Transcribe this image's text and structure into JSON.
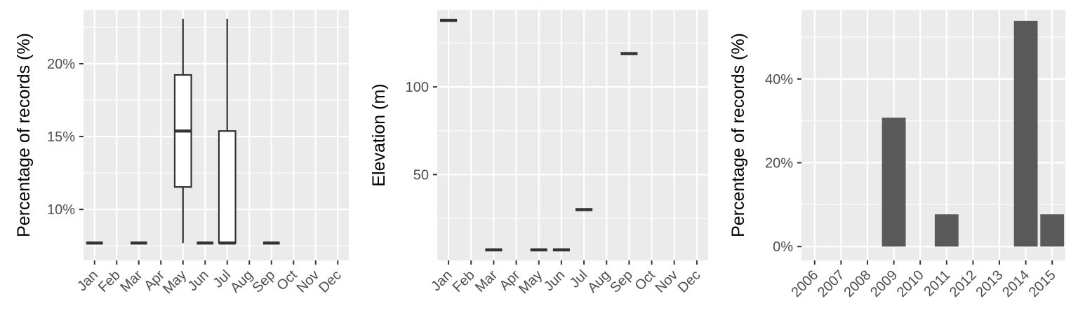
{
  "chart_data": [
    {
      "type": "boxplot",
      "title": "",
      "xlabel": "",
      "ylabel": "Percentage of records (%)",
      "categories": [
        "Jan",
        "Feb",
        "Mar",
        "Apr",
        "May",
        "Jun",
        "Jul",
        "Aug",
        "Sep",
        "Oct",
        "Nov",
        "Dec"
      ],
      "ylim": [
        6.5,
        23.7
      ],
      "yticks": [
        10,
        15,
        20
      ],
      "ytick_labels": [
        "10%",
        "15%",
        "20%"
      ],
      "boxes": [
        {
          "category": "Jan",
          "min": 7.69,
          "q1": 7.69,
          "median": 7.69,
          "q3": 7.69,
          "max": 7.69
        },
        {
          "category": "Mar",
          "min": 7.69,
          "q1": 7.69,
          "median": 7.69,
          "q3": 7.69,
          "max": 7.69
        },
        {
          "category": "May",
          "min": 7.69,
          "q1": 11.54,
          "median": 15.38,
          "q3": 19.23,
          "max": 23.08
        },
        {
          "category": "Jun",
          "min": 7.69,
          "q1": 7.69,
          "median": 7.69,
          "q3": 7.69,
          "max": 7.69
        },
        {
          "category": "Jul",
          "min": 7.69,
          "q1": 7.69,
          "median": 7.69,
          "q3": 15.38,
          "max": 23.08
        },
        {
          "category": "Sep",
          "min": 7.69,
          "q1": 7.69,
          "median": 7.69,
          "q3": 7.69,
          "max": 7.69
        }
      ],
      "grid": true,
      "legend": "none"
    },
    {
      "type": "boxplot",
      "title": "",
      "xlabel": "",
      "ylabel": "Elevation (m)",
      "categories": [
        "Jan",
        "Feb",
        "Mar",
        "Apr",
        "May",
        "Jun",
        "Jul",
        "Aug",
        "Sep",
        "Oct",
        "Nov",
        "Dec"
      ],
      "ylim": [
        1,
        144
      ],
      "yticks": [
        50,
        100
      ],
      "ytick_labels": [
        "50",
        "100"
      ],
      "boxes": [
        {
          "category": "Jan",
          "min": 138,
          "q1": 138,
          "median": 138,
          "q3": 138,
          "max": 138
        },
        {
          "category": "Mar",
          "min": 7,
          "q1": 7,
          "median": 7,
          "q3": 7,
          "max": 7
        },
        {
          "category": "May",
          "min": 7,
          "q1": 7,
          "median": 7,
          "q3": 7,
          "max": 7
        },
        {
          "category": "Jun",
          "min": 7,
          "q1": 7,
          "median": 7,
          "q3": 7,
          "max": 7
        },
        {
          "category": "Jul",
          "min": 30,
          "q1": 30,
          "median": 30,
          "q3": 30,
          "max": 30
        },
        {
          "category": "Sep",
          "min": 119,
          "q1": 119,
          "median": 119,
          "q3": 119,
          "max": 119
        }
      ],
      "grid": true,
      "legend": "none"
    },
    {
      "type": "bar",
      "title": "",
      "xlabel": "",
      "ylabel": "Percentage of records (%)",
      "categories": [
        "2006",
        "2007",
        "2008",
        "2009",
        "2010",
        "2011",
        "2012",
        "2013",
        "2014",
        "2015"
      ],
      "values": [
        0,
        0,
        0,
        30.77,
        0,
        7.69,
        0,
        0,
        53.85,
        7.69
      ],
      "ylim": [
        -3.3,
        56.5
      ],
      "yticks": [
        0,
        20,
        40
      ],
      "ytick_labels": [
        "0%",
        "20%",
        "40%"
      ],
      "grid": true,
      "legend": "none"
    }
  ]
}
